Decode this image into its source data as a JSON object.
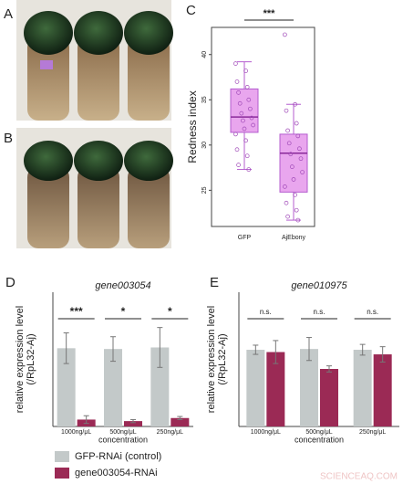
{
  "panel_labels": [
    "A",
    "B",
    "C",
    "D",
    "E"
  ],
  "watermark": "SCIENCEAQ.COM",
  "chart_data": [
    {
      "type": "box",
      "ylabel": "Redness index",
      "categories": [
        "GFP",
        "AjEbony"
      ],
      "color": "#e9a6ee",
      "edge": "#b45ccf",
      "ylim": [
        21,
        43
      ],
      "yticks": [
        25,
        30,
        35,
        40
      ],
      "significance": "***",
      "boxes": [
        {
          "min": 27.3,
          "q1": 31.4,
          "median": 33.1,
          "q3": 36.2,
          "max": 39.2,
          "points": [
            39,
            38.2,
            37,
            36.4,
            35.8,
            35,
            34.6,
            34,
            33.5,
            33,
            32.7,
            32.2,
            31.8,
            31.2,
            30.5,
            29.5,
            28.8,
            27.8,
            27.3
          ]
        },
        {
          "min": 21.7,
          "q1": 24.8,
          "median": 29.1,
          "q3": 31.2,
          "max": 34.5,
          "points": [
            42.2,
            34.5,
            33.8,
            32.4,
            31.6,
            31,
            30.2,
            29.6,
            29,
            28.5,
            27.6,
            27,
            26.2,
            25.4,
            24.5,
            23.6,
            22.8,
            22.1,
            21.7
          ]
        }
      ]
    },
    {
      "type": "bar",
      "title": "gene003054",
      "ylabel": [
        "relative expression level",
        "(/RpL32-Aj)"
      ],
      "xlabel": "concentration",
      "categories": [
        "1000ng/μL",
        "500ng/μL",
        "250ng/μL"
      ],
      "ylim": [
        0,
        1.75
      ],
      "series": [
        {
          "name": "GFP-RNAi (control)",
          "color": "#c3c9c9",
          "values": [
            1.02,
            1.01,
            1.03
          ],
          "errors": [
            0.2,
            0.16,
            0.26
          ]
        },
        {
          "name": "gene003054-RNAi",
          "color": "#9b2a55",
          "values": [
            0.09,
            0.07,
            0.11
          ],
          "errors": [
            0.05,
            0.02,
            0.02
          ]
        }
      ],
      "annotations": [
        "***",
        "*",
        "*"
      ]
    },
    {
      "type": "bar",
      "title": "gene010975",
      "ylabel": [
        "relative expression level",
        "(/RpL32-Aj)"
      ],
      "xlabel": "concentration",
      "categories": [
        "1000ng/μL",
        "500ng/μL",
        "250ng/μL"
      ],
      "ylim": [
        0,
        1.75
      ],
      "series": [
        {
          "color": "#c3c9c9",
          "values": [
            1.0,
            1.01,
            1.0
          ],
          "errors": [
            0.06,
            0.15,
            0.07
          ]
        },
        {
          "color": "#9b2a55",
          "values": [
            0.97,
            0.75,
            0.94
          ],
          "errors": [
            0.15,
            0.04,
            0.1
          ]
        }
      ],
      "annotations": [
        "n.s.",
        "n.s.",
        "n.s."
      ]
    }
  ]
}
